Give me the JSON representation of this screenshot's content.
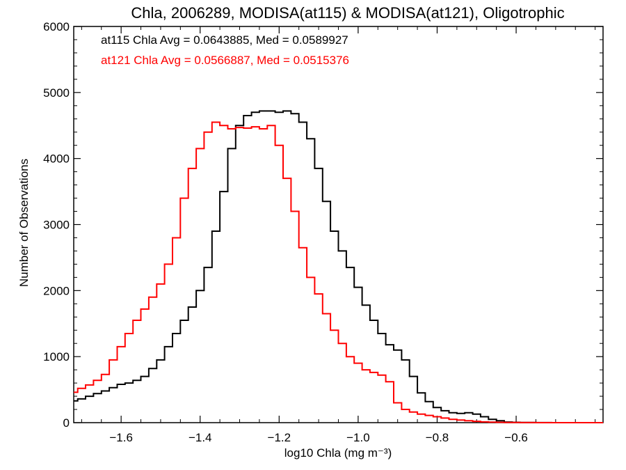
{
  "chart_data": {
    "type": "line",
    "title": "Chla, 2006289, MODISA(at115) & MODISA(at121), Oligotrophic",
    "xlabel": "log10 Chla (mg m⁻³)",
    "ylabel": "Number of Observations",
    "xlim": [
      -1.72,
      -0.38
    ],
    "ylim": [
      0,
      6000
    ],
    "x_ticks": [
      -1.6,
      -1.4,
      -1.2,
      -1.0,
      -0.8,
      -0.6
    ],
    "x_tick_labels": [
      "−1.6",
      "−1.4",
      "−1.2",
      "−1.0",
      "−0.8",
      "−0.6"
    ],
    "y_ticks": [
      0,
      1000,
      2000,
      3000,
      4000,
      5000,
      6000
    ],
    "y_tick_labels": [
      "0",
      "1000",
      "2000",
      "3000",
      "4000",
      "5000",
      "6000"
    ],
    "grid": false,
    "annotations": [
      {
        "text": "at115 Chla Avg = 0.0643885, Med = 0.0589927",
        "color": "#000000"
      },
      {
        "text": "at121 Chla Avg = 0.0566887, Med = 0.0515376",
        "color": "#ff0000"
      }
    ],
    "x": [
      -1.72,
      -1.7,
      -1.68,
      -1.66,
      -1.64,
      -1.62,
      -1.6,
      -1.58,
      -1.56,
      -1.54,
      -1.52,
      -1.5,
      -1.48,
      -1.46,
      -1.44,
      -1.42,
      -1.4,
      -1.38,
      -1.36,
      -1.34,
      -1.32,
      -1.3,
      -1.28,
      -1.26,
      -1.24,
      -1.22,
      -1.2,
      -1.18,
      -1.16,
      -1.14,
      -1.12,
      -1.1,
      -1.08,
      -1.06,
      -1.04,
      -1.02,
      -1.0,
      -0.98,
      -0.96,
      -0.94,
      -0.92,
      -0.9,
      -0.88,
      -0.86,
      -0.84,
      -0.82,
      -0.8,
      -0.78,
      -0.76,
      -0.74,
      -0.72,
      -0.7,
      -0.68,
      -0.66,
      -0.64,
      -0.62,
      -0.6,
      -0.58,
      -0.56,
      -0.54,
      -0.52,
      -0.5,
      -0.48,
      -0.46,
      -0.44,
      -0.42,
      -0.4,
      -0.38
    ],
    "series": [
      {
        "color": "#000000",
        "values": [
          330,
          360,
          400,
          440,
          480,
          530,
          580,
          600,
          640,
          700,
          820,
          950,
          1150,
          1350,
          1550,
          1750,
          2000,
          2350,
          2900,
          3500,
          4150,
          4500,
          4650,
          4700,
          4720,
          4720,
          4700,
          4720,
          4680,
          4550,
          4300,
          3850,
          3350,
          2900,
          2600,
          2350,
          2050,
          1780,
          1550,
          1350,
          1180,
          1100,
          950,
          700,
          450,
          320,
          230,
          180,
          150,
          140,
          150,
          130,
          90,
          50,
          30,
          10,
          5,
          3,
          2,
          1,
          1,
          0,
          0,
          0,
          0,
          0,
          0,
          0
        ]
      },
      {
        "color": "#ff0000",
        "values": [
          460,
          520,
          570,
          640,
          730,
          950,
          1150,
          1350,
          1550,
          1720,
          1900,
          2100,
          2400,
          2800,
          3400,
          3850,
          4150,
          4400,
          4550,
          4500,
          4450,
          4470,
          4460,
          4480,
          4450,
          4500,
          4200,
          3700,
          3200,
          2650,
          2200,
          1950,
          1650,
          1400,
          1200,
          1000,
          900,
          800,
          760,
          720,
          620,
          300,
          200,
          160,
          130,
          110,
          90,
          70,
          50,
          40,
          30,
          20,
          12,
          8,
          5,
          3,
          2,
          1,
          1,
          0,
          0,
          0,
          0,
          0,
          0,
          0,
          0,
          0
        ]
      }
    ]
  }
}
